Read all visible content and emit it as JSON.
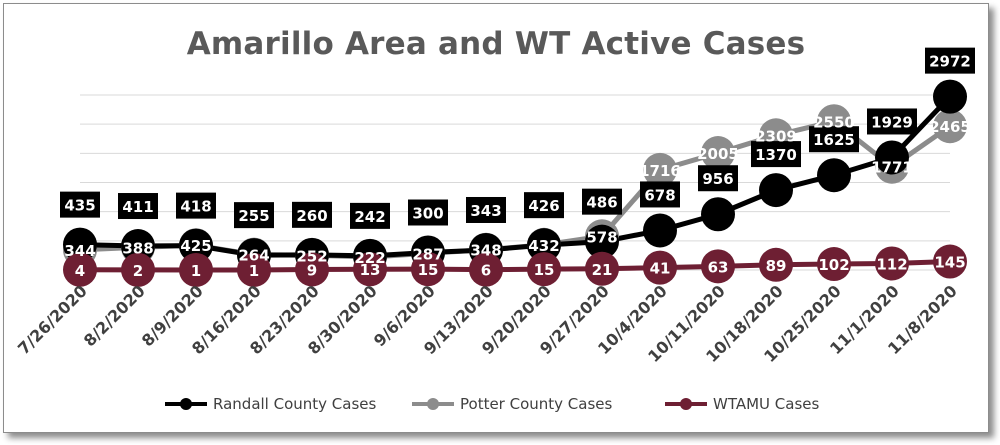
{
  "chart_data": {
    "type": "line",
    "title": "Amarillo Area and WT Active Cases",
    "categories": [
      "7/26/2020",
      "8/2/2020",
      "8/9/2020",
      "8/16/2020",
      "8/23/2020",
      "8/30/2020",
      "9/6/2020",
      "9/13/2020",
      "9/20/2020",
      "9/27/2020",
      "10/4/2020",
      "10/11/2020",
      "10/18/2020",
      "10/25/2020",
      "11/1/2020",
      "11/8/2020"
    ],
    "series": [
      {
        "name": "Randall County Cases",
        "color": "#000000",
        "label_color": "#000000",
        "values": [
          435,
          411,
          418,
          255,
          260,
          242,
          300,
          343,
          426,
          486,
          678,
          956,
          1370,
          1625,
          1929,
          2972
        ]
      },
      {
        "name": "Potter County Cases",
        "color": "#8c8c8c",
        "label_color": "#8c8c8c",
        "values": [
          344,
          388,
          425,
          264,
          252,
          222,
          287,
          348,
          432,
          578,
          1716,
          2005,
          2309,
          2550,
          1771,
          2465
        ]
      },
      {
        "name": "WTAMU Cases",
        "color": "#6e1f33",
        "label_color": "#6e1f33",
        "values": [
          4,
          2,
          1,
          1,
          9,
          13,
          15,
          6,
          15,
          21,
          41,
          63,
          89,
          102,
          112,
          145
        ]
      }
    ],
    "ylim": [
      0,
      3000
    ],
    "grid": true,
    "legend": "bottom"
  }
}
